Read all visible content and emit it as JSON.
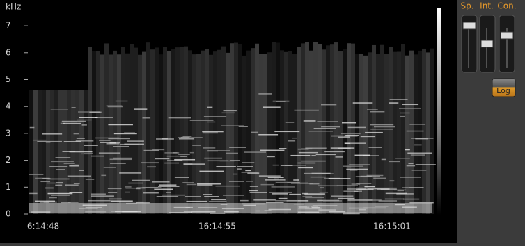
{
  "spectrogram": {
    "y_label": "kHz",
    "ylim": [
      0,
      7.7
    ],
    "yticks": [
      0,
      1,
      2,
      3,
      4,
      5,
      6,
      7
    ],
    "xticks": [
      "6:14:48",
      "16:14:55",
      "16:15:01"
    ]
  },
  "controls": {
    "sliders": [
      "Sp.",
      "Int.",
      "Con."
    ],
    "button": "Log"
  }
}
